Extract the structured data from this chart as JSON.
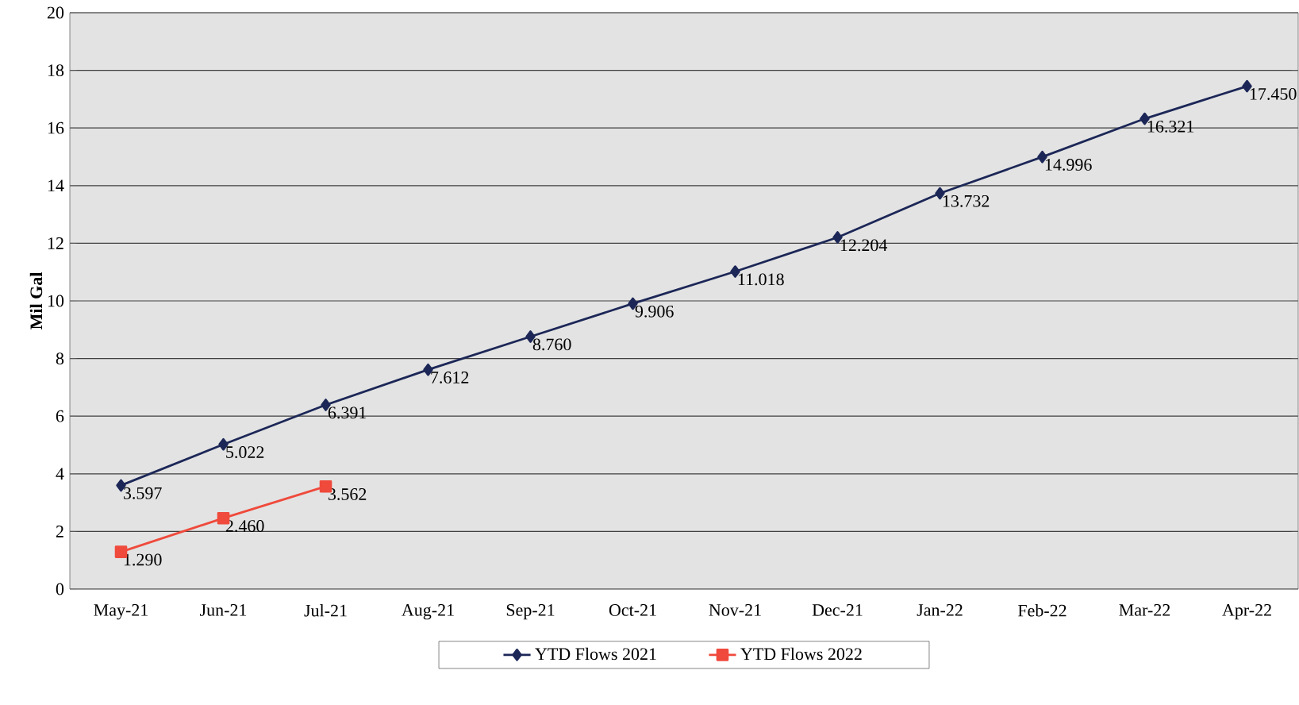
{
  "chart_data": {
    "type": "line",
    "ylabel": "Mil Gal",
    "categories": [
      "May-21",
      "Jun-21",
      "Jul-21",
      "Aug-21",
      "Sep-21",
      "Oct-21",
      "Nov-21",
      "Dec-21",
      "Jan-22",
      "Feb-22",
      "Mar-22",
      "Apr-22"
    ],
    "series": [
      {
        "name": "YTD Flows 2021",
        "color": "#1c2757",
        "marker": "diamond",
        "values": [
          3.597,
          5.022,
          6.391,
          7.612,
          8.76,
          9.906,
          11.018,
          12.204,
          13.732,
          14.996,
          16.321,
          17.45
        ],
        "value_labels": [
          "3.597",
          "5.022",
          "6.391",
          "7.612",
          "8.760",
          "9.906",
          "11.018",
          "12.204",
          "13.732",
          "14.996",
          "16.321",
          "17.450"
        ]
      },
      {
        "name": "YTD Flows 2022",
        "color": "#ef4a3c",
        "marker": "square",
        "values": [
          1.29,
          2.46,
          3.562,
          null,
          null,
          null,
          null,
          null,
          null,
          null,
          null,
          null
        ],
        "value_labels": [
          "1.290",
          "2.460",
          "3.562",
          null,
          null,
          null,
          null,
          null,
          null,
          null,
          null,
          null
        ]
      }
    ],
    "ylim": [
      0,
      20
    ],
    "yticks": [
      0,
      2,
      4,
      6,
      8,
      10,
      12,
      14,
      16,
      18,
      20
    ],
    "grid": "y",
    "legend": "bottom",
    "line_style": "solid"
  }
}
